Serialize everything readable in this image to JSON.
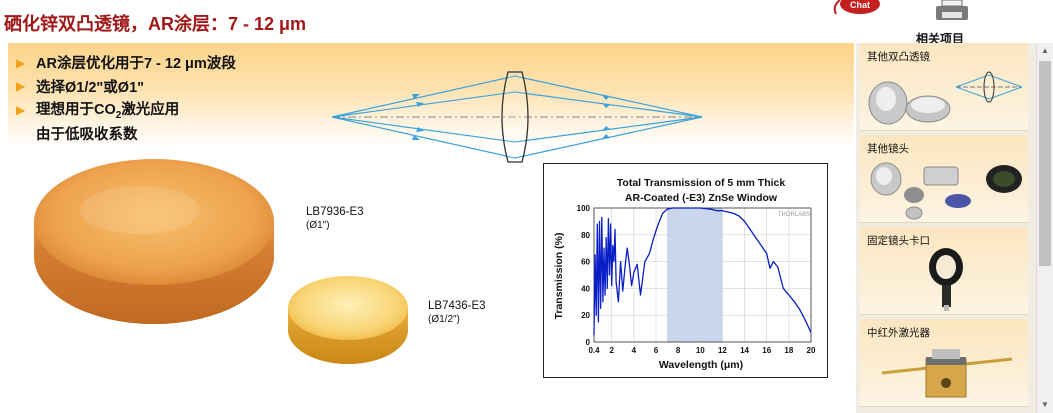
{
  "page": {
    "title": "硒化锌双凸透镜，AR涂层：7 - 12 μm"
  },
  "header": {
    "chat_label": "Chat",
    "related_items_label": "相关项目"
  },
  "features": [
    {
      "text": "AR涂层优化用于7 - 12 μm波段",
      "has_arrow": true
    },
    {
      "text": "选择Ø1/2\"或Ø1\"",
      "has_arrow": true
    },
    {
      "text_before": "理想用于CO",
      "sub": "2",
      "text_after": "激光应用",
      "has_arrow": true
    },
    {
      "text": "由于低吸收系数",
      "has_arrow": false
    }
  ],
  "products": [
    {
      "part_number": "LB7936-E3",
      "diameter": "(Ø1\")"
    },
    {
      "part_number": "LB7436-E3",
      "diameter": "(Ø1/2\")"
    }
  ],
  "sidebar": {
    "items": [
      {
        "label": "其他双凸透镜"
      },
      {
        "label": "其他镜头"
      },
      {
        "label": "固定镜头卡口"
      },
      {
        "label": "中红外激光器"
      }
    ]
  },
  "chart_data": {
    "type": "line",
    "title": "Total Transmission of 5 mm Thick",
    "subtitle": "AR-Coated (-E3) ZnSe Window",
    "xlabel": "Wavelength (μm)",
    "ylabel": "Transmission (%)",
    "watermark": "THORLABS",
    "xlim": [
      0.4,
      20
    ],
    "ylim": [
      0,
      100
    ],
    "x_ticks": [
      "0.4",
      "2",
      "4",
      "6",
      "8",
      "10",
      "12",
      "14",
      "16",
      "18",
      "20"
    ],
    "x_tick_values": [
      0.4,
      2,
      4,
      6,
      8,
      10,
      12,
      14,
      16,
      18,
      20
    ],
    "y_ticks": [
      "0",
      "20",
      "40",
      "60",
      "80",
      "100"
    ],
    "y_tick_values": [
      0,
      20,
      40,
      60,
      80,
      100
    ],
    "shaded_band": [
      7,
      12
    ],
    "grid": true,
    "line_color": "#0a1ec8",
    "band_color": "#c9d6ee",
    "series": [
      {
        "x": [
          0.4,
          0.5,
          0.6,
          0.7,
          0.8,
          0.9,
          1.0,
          1.1,
          1.2,
          1.3,
          1.4,
          1.5,
          1.6,
          1.7,
          1.8,
          1.9,
          2.0,
          2.1,
          2.2,
          2.3,
          2.4,
          2.6,
          2.8,
          3.0,
          3.2,
          3.4,
          3.6,
          3.8,
          4.0,
          4.3,
          4.6,
          5.0,
          5.4,
          5.8,
          6.2,
          6.6,
          7.0,
          7.5,
          8.0,
          9.0,
          10.0,
          11.0,
          11.5,
          12.0,
          12.5,
          13.0,
          13.5,
          14.0,
          14.5,
          15.0,
          15.5,
          16.0,
          16.3,
          16.6,
          17.0,
          17.5,
          18.0,
          18.5,
          19.0,
          19.5,
          20.0
        ],
        "y": [
          5,
          65,
          20,
          88,
          15,
          90,
          25,
          93,
          30,
          70,
          35,
          78,
          40,
          92,
          50,
          88,
          42,
          72,
          60,
          84,
          45,
          30,
          60,
          38,
          56,
          70,
          58,
          42,
          52,
          58,
          35,
          60,
          66,
          78,
          88,
          96,
          99,
          100,
          100,
          100,
          100,
          99,
          98,
          98,
          97,
          96,
          94,
          90,
          84,
          78,
          72,
          66,
          55,
          60,
          56,
          40,
          35,
          30,
          24,
          16,
          7
        ]
      }
    ]
  }
}
